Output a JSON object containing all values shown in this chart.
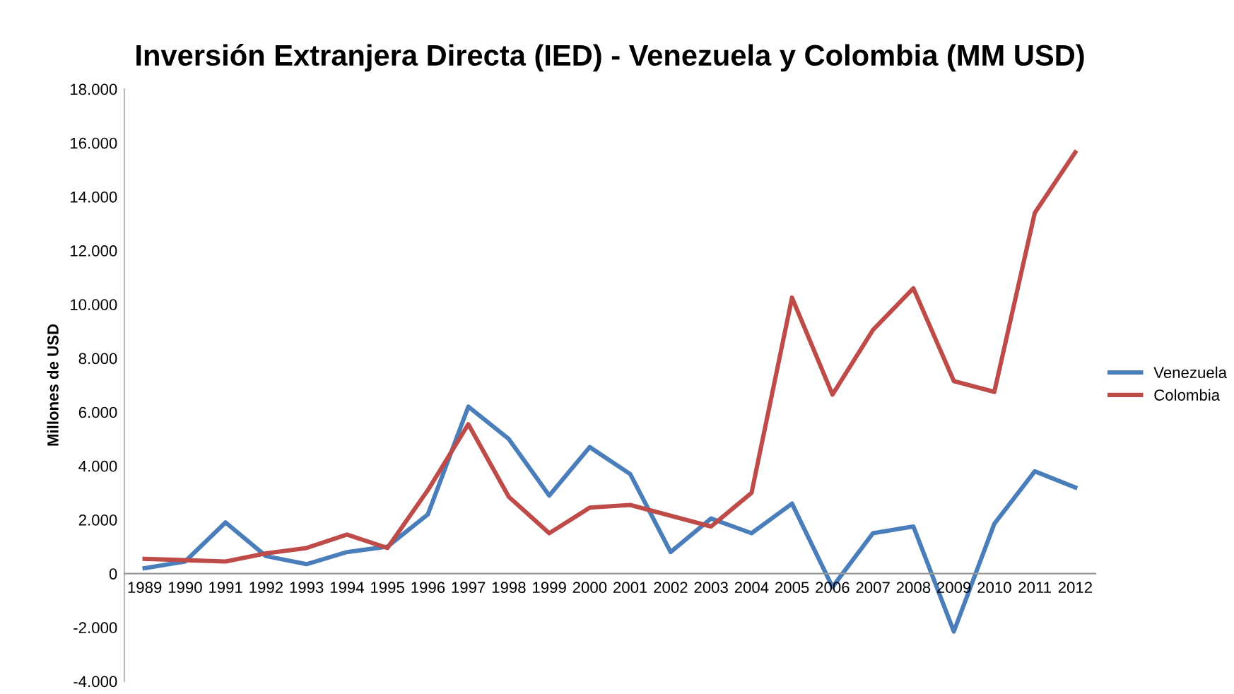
{
  "chart_data": {
    "type": "line",
    "title": "Inversión Extranjera Directa (IED) - Venezuela y Colombia (MM USD)",
    "ylabel": "Millones de USD",
    "categories": [
      "1989",
      "1990",
      "1991",
      "1992",
      "1993",
      "1994",
      "1995",
      "1996",
      "1997",
      "1998",
      "1999",
      "2000",
      "2001",
      "2002",
      "2003",
      "2004",
      "2005",
      "2006",
      "2007",
      "2008",
      "2009",
      "2010",
      "2011",
      "2012"
    ],
    "series": [
      {
        "name": "Venezuela",
        "color": "#4a7ebb",
        "values": [
          200,
          450,
          1900,
          650,
          350,
          800,
          1000,
          2200,
          6200,
          5000,
          2900,
          4700,
          3700,
          800,
          2050,
          1500,
          2600,
          -500,
          1500,
          1750,
          -2150,
          1850,
          3800,
          3200
        ]
      },
      {
        "name": "Colombia",
        "color": "#be4b48",
        "values": [
          550,
          500,
          450,
          750,
          950,
          1450,
          950,
          3100,
          5550,
          2850,
          1500,
          2450,
          2550,
          2150,
          1750,
          3000,
          10250,
          6650,
          9050,
          10600,
          7150,
          6750,
          13400,
          15650
        ]
      }
    ],
    "ylim": [
      -4000,
      18000
    ],
    "yticks": [
      {
        "value": -4000,
        "label": "-4.000"
      },
      {
        "value": -2000,
        "label": "-2.000"
      },
      0,
      {
        "value": 2000,
        "label": "2.000"
      },
      {
        "value": 4000,
        "label": "4.000"
      },
      {
        "value": 6000,
        "label": "6.000"
      },
      {
        "value": 8000,
        "label": "8.000"
      },
      {
        "value": 10000,
        "label": "10.000"
      },
      {
        "value": 12000,
        "label": "12.000"
      },
      {
        "value": 14000,
        "label": "14.000"
      },
      {
        "value": 16000,
        "label": "16.000"
      },
      {
        "value": 18000,
        "label": "18.000"
      }
    ],
    "grid": false,
    "legend": "right",
    "line_style": "solid",
    "marker": "none"
  }
}
